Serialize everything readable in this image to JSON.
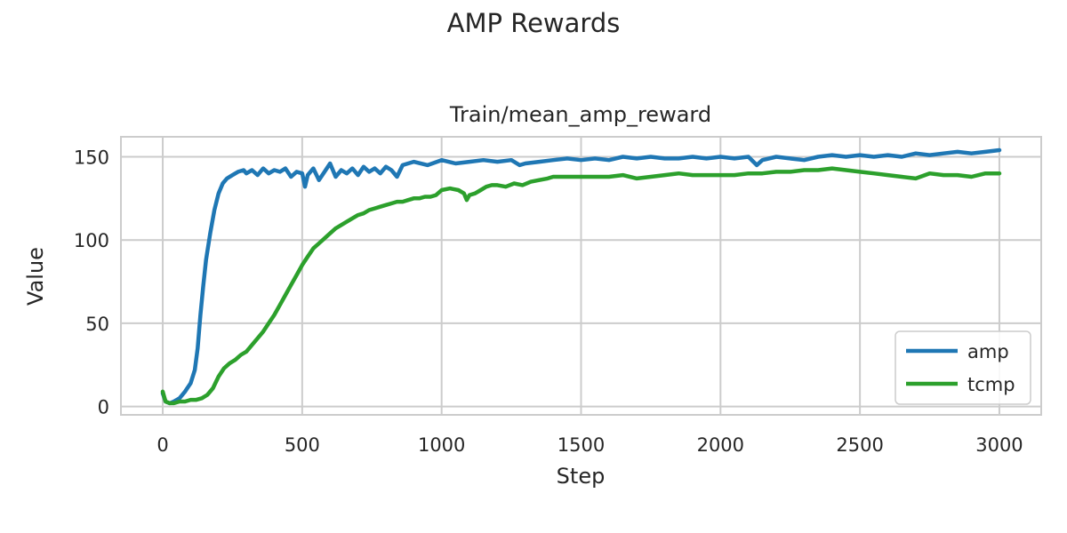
{
  "figure": {
    "title": "AMP Rewards"
  },
  "chart_data": {
    "type": "line",
    "title": "Train/mean_amp_reward",
    "xlabel": "Step",
    "ylabel": "Value",
    "xlim": [
      -150,
      3150
    ],
    "ylim": [
      -5,
      162
    ],
    "xticks": [
      0,
      500,
      1000,
      1500,
      2000,
      2500,
      3000
    ],
    "yticks": [
      0,
      50,
      100,
      150
    ],
    "grid": true,
    "legend_position": "bottom-right",
    "series": [
      {
        "name": "amp",
        "color": "#1f77b4",
        "x": [
          0,
          10,
          25,
          40,
          60,
          80,
          100,
          115,
          125,
          135,
          145,
          155,
          170,
          185,
          200,
          215,
          230,
          250,
          270,
          290,
          300,
          320,
          340,
          360,
          380,
          400,
          420,
          440,
          460,
          480,
          500,
          510,
          520,
          540,
          560,
          580,
          600,
          620,
          640,
          660,
          680,
          700,
          720,
          740,
          760,
          780,
          800,
          820,
          840,
          860,
          880,
          900,
          950,
          1000,
          1050,
          1100,
          1150,
          1200,
          1250,
          1280,
          1300,
          1350,
          1400,
          1450,
          1500,
          1550,
          1600,
          1650,
          1700,
          1750,
          1800,
          1850,
          1900,
          1950,
          2000,
          2050,
          2100,
          2130,
          2150,
          2200,
          2250,
          2300,
          2350,
          2400,
          2450,
          2500,
          2550,
          2600,
          2650,
          2700,
          2750,
          2800,
          2850,
          2900,
          2950,
          3000
        ],
        "y": [
          8,
          3,
          2,
          3,
          5,
          9,
          14,
          22,
          35,
          55,
          72,
          88,
          104,
          118,
          128,
          134,
          137,
          139,
          141,
          142,
          140,
          142,
          139,
          143,
          140,
          142,
          141,
          143,
          138,
          141,
          140,
          132,
          139,
          143,
          136,
          141,
          146,
          138,
          142,
          140,
          143,
          139,
          144,
          141,
          143,
          140,
          144,
          142,
          138,
          145,
          146,
          147,
          145,
          148,
          146,
          147,
          148,
          147,
          148,
          145,
          146,
          147,
          148,
          149,
          148,
          149,
          148,
          150,
          149,
          150,
          149,
          149,
          150,
          149,
          150,
          149,
          150,
          145,
          148,
          150,
          149,
          148,
          150,
          151,
          150,
          151,
          150,
          151,
          150,
          152,
          151,
          152,
          153,
          152,
          153,
          154
        ]
      },
      {
        "name": "tcmp",
        "color": "#2ca02c",
        "x": [
          0,
          10,
          25,
          40,
          60,
          80,
          100,
          120,
          140,
          160,
          180,
          200,
          220,
          240,
          260,
          280,
          300,
          320,
          340,
          360,
          380,
          400,
          420,
          440,
          460,
          480,
          500,
          520,
          540,
          560,
          580,
          600,
          620,
          640,
          660,
          680,
          700,
          720,
          740,
          760,
          780,
          800,
          820,
          840,
          860,
          880,
          900,
          920,
          940,
          960,
          980,
          1000,
          1030,
          1060,
          1080,
          1090,
          1100,
          1120,
          1140,
          1160,
          1180,
          1200,
          1230,
          1260,
          1290,
          1320,
          1350,
          1380,
          1400,
          1450,
          1500,
          1550,
          1600,
          1650,
          1700,
          1750,
          1800,
          1850,
          1900,
          1950,
          2000,
          2050,
          2100,
          2150,
          2200,
          2250,
          2300,
          2350,
          2400,
          2450,
          2500,
          2550,
          2600,
          2650,
          2700,
          2750,
          2800,
          2850,
          2900,
          2950,
          3000
        ],
        "y": [
          9,
          3,
          2,
          2,
          3,
          3,
          4,
          4,
          5,
          7,
          11,
          18,
          23,
          26,
          28,
          31,
          33,
          37,
          41,
          45,
          50,
          55,
          61,
          67,
          73,
          79,
          85,
          90,
          95,
          98,
          101,
          104,
          107,
          109,
          111,
          113,
          115,
          116,
          118,
          119,
          120,
          121,
          122,
          123,
          123,
          124,
          125,
          125,
          126,
          126,
          127,
          130,
          131,
          130,
          128,
          124,
          127,
          128,
          130,
          132,
          133,
          133,
          132,
          134,
          133,
          135,
          136,
          137,
          138,
          138,
          138,
          138,
          138,
          139,
          137,
          138,
          139,
          140,
          139,
          139,
          139,
          139,
          140,
          140,
          141,
          141,
          142,
          142,
          143,
          142,
          141,
          140,
          139,
          138,
          137,
          140,
          139,
          139,
          138,
          140,
          140
        ]
      }
    ]
  }
}
